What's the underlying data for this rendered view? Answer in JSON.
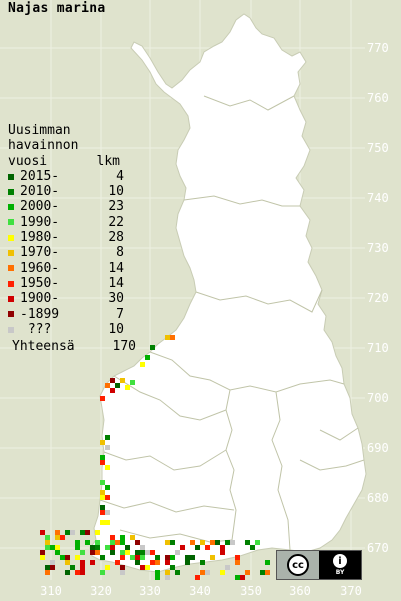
{
  "map": {
    "title": "Najas marina",
    "legend": {
      "header_lines": [
        "Uusimman",
        "havainnon"
      ],
      "col_label": "vuosi",
      "col_count": "lkm",
      "rows": [
        {
          "label": "2015-",
          "count": "4",
          "color": "#006400"
        },
        {
          "label": "2010-",
          "count": "10",
          "color": "#008000"
        },
        {
          "label": "2000-",
          "count": "23",
          "color": "#00b000"
        },
        {
          "label": "1990-",
          "count": "22",
          "color": "#40e040"
        },
        {
          "label": "1980-",
          "count": "28",
          "color": "#ffff00"
        },
        {
          "label": "1970-",
          "count": "8",
          "color": "#f0c000"
        },
        {
          "label": "1960-",
          "count": "14",
          "color": "#ff7000"
        },
        {
          "label": "1950-",
          "count": "14",
          "color": "#ff2000"
        },
        {
          "label": "1900-",
          "count": "30",
          "color": "#d00000"
        },
        {
          "label": "-1899",
          "count": "7",
          "color": "#900000"
        },
        {
          "label": " ???",
          "count": "10",
          "color": "#c8c8c8"
        }
      ],
      "total_label": "Yhteensä",
      "total_count": "170"
    },
    "y_ticks": [
      "770",
      "760",
      "750",
      "740",
      "730",
      "720",
      "710",
      "700",
      "690",
      "680",
      "670"
    ],
    "x_ticks": [
      "310",
      "320",
      "330",
      "340",
      "350",
      "360",
      "370"
    ],
    "colors": {
      "background": "#dfe3cd",
      "land": "#ffffff",
      "grid": "#ffffff",
      "boundary": "#bcc0a4"
    },
    "license": {
      "icon": "cc-icon",
      "by_icon": "person-icon",
      "by_text": "BY"
    }
  }
}
